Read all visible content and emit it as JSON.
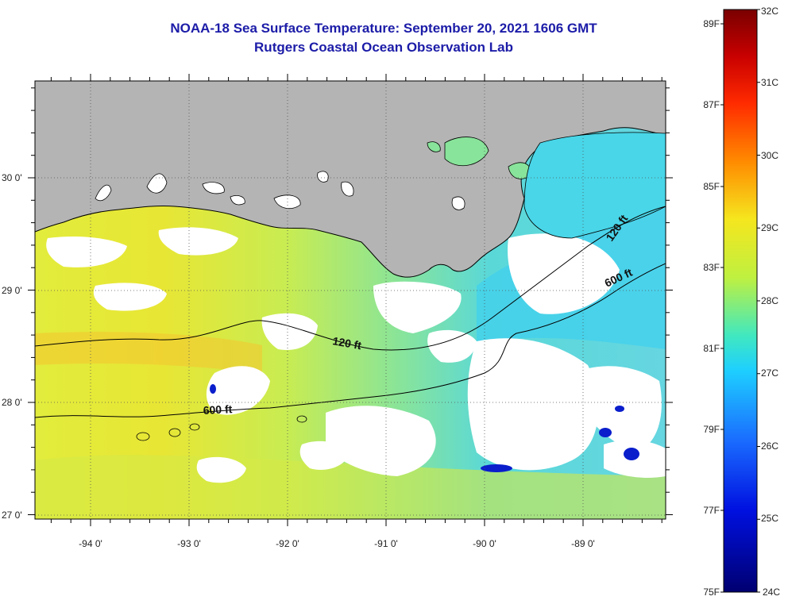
{
  "header": {
    "title": "NOAA-18 Sea Surface Temperature:  September 20, 2021 1606 GMT",
    "subtitle": "Rutgers Coastal Ocean Observation Lab"
  },
  "map": {
    "lon_ticks": [
      "-94 0'",
      "-93 0'",
      "-92 0'",
      "-91 0'",
      "-90 0'",
      "-89 0'"
    ],
    "lat_ticks": [
      "30 0'",
      "29 0'",
      "28 0'",
      "27 0'"
    ],
    "contour_labels": [
      "120 ft",
      "600 ft",
      "120 ft",
      "600 ft"
    ]
  },
  "colorbar": {
    "celsius": [
      "32C",
      "31C",
      "30C",
      "29C",
      "28C",
      "27C",
      "26C",
      "25C",
      "24C"
    ],
    "fahrenheit": [
      "89F",
      "87F",
      "85F",
      "83F",
      "81F",
      "79F",
      "77F",
      "75F"
    ]
  },
  "colors": {
    "land": "#b4b4b4",
    "title": "#1c1ca8",
    "cloud": "#ffffff"
  }
}
